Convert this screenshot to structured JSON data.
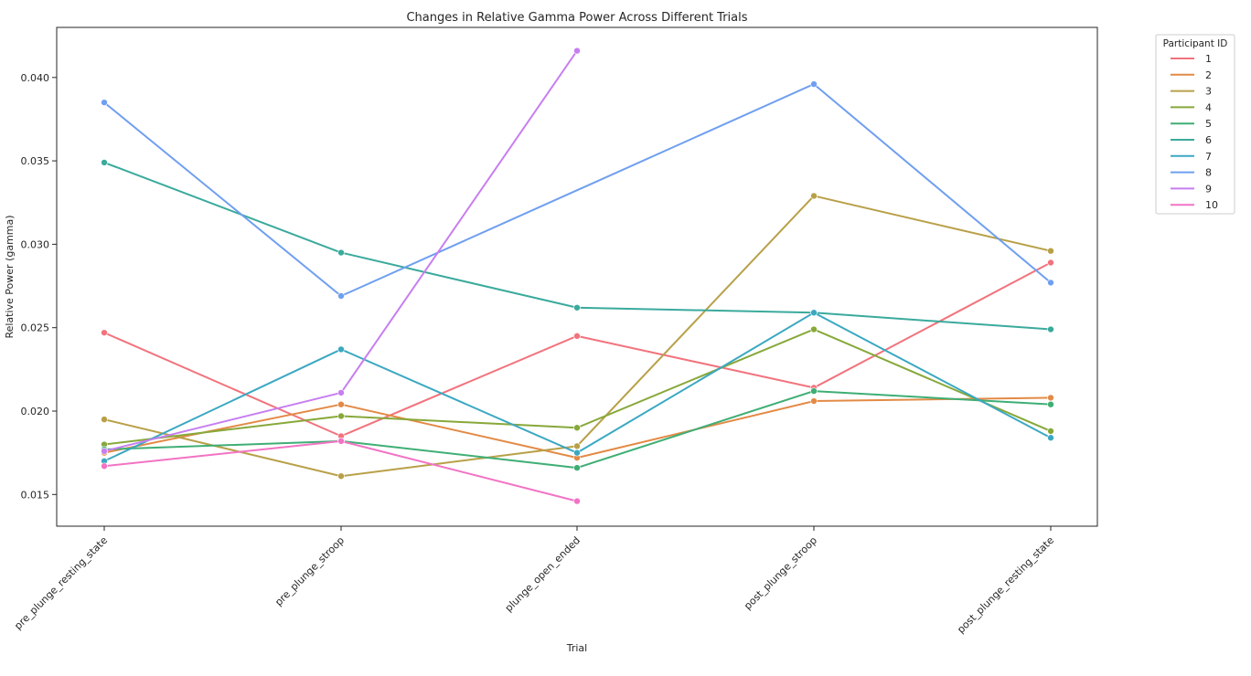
{
  "chart_data": {
    "type": "line",
    "title": "Changes in Relative Gamma Power Across Different Trials",
    "xlabel": "Trial",
    "ylabel": "Relative Power (gamma)",
    "categories": [
      "pre_plunge_resting_state",
      "pre_plunge_stroop",
      "plunge_open_ended",
      "post_plunge_stroop",
      "post_plunge_resting_state"
    ],
    "ylim": [
      0.0131,
      0.043
    ],
    "yticks": [
      "0.015",
      "0.020",
      "0.025",
      "0.030",
      "0.035",
      "0.040"
    ],
    "grid": false,
    "legend": {
      "title": "Participant ID",
      "placement": "outside-top-right"
    },
    "series": [
      {
        "name": "1",
        "color": "#f2737d",
        "values": [
          0.0247,
          0.0185,
          0.0245,
          0.0214,
          0.0289
        ]
      },
      {
        "name": "2",
        "color": "#e38a45",
        "values": [
          0.0175,
          0.0204,
          0.0172,
          0.0206,
          0.0208
        ]
      },
      {
        "name": "3",
        "color": "#b8a048",
        "values": [
          0.0195,
          0.0161,
          0.0179,
          0.0329,
          0.0296
        ]
      },
      {
        "name": "4",
        "color": "#87a83a",
        "values": [
          0.018,
          0.0197,
          0.019,
          0.0249,
          0.0188
        ]
      },
      {
        "name": "5",
        "color": "#3fae75",
        "values": [
          0.0177,
          0.0182,
          0.0166,
          0.0212,
          0.0204
        ]
      },
      {
        "name": "6",
        "color": "#3aaa9c",
        "values": [
          0.0349,
          0.0295,
          0.0262,
          0.0259,
          0.0249
        ]
      },
      {
        "name": "7",
        "color": "#3ba8c2",
        "values": [
          0.017,
          0.0237,
          0.0175,
          0.0259,
          0.0184
        ]
      },
      {
        "name": "8",
        "color": "#6f9ff0",
        "values": [
          0.0385,
          0.0269,
          null,
          0.0396,
          0.0277
        ]
      },
      {
        "name": "9",
        "color": "#c77ef0",
        "values": [
          0.0176,
          0.0211,
          0.0416,
          null,
          null
        ]
      },
      {
        "name": "10",
        "color": "#f273c4",
        "values": [
          0.0167,
          0.0182,
          0.0146,
          null,
          null
        ]
      }
    ]
  }
}
